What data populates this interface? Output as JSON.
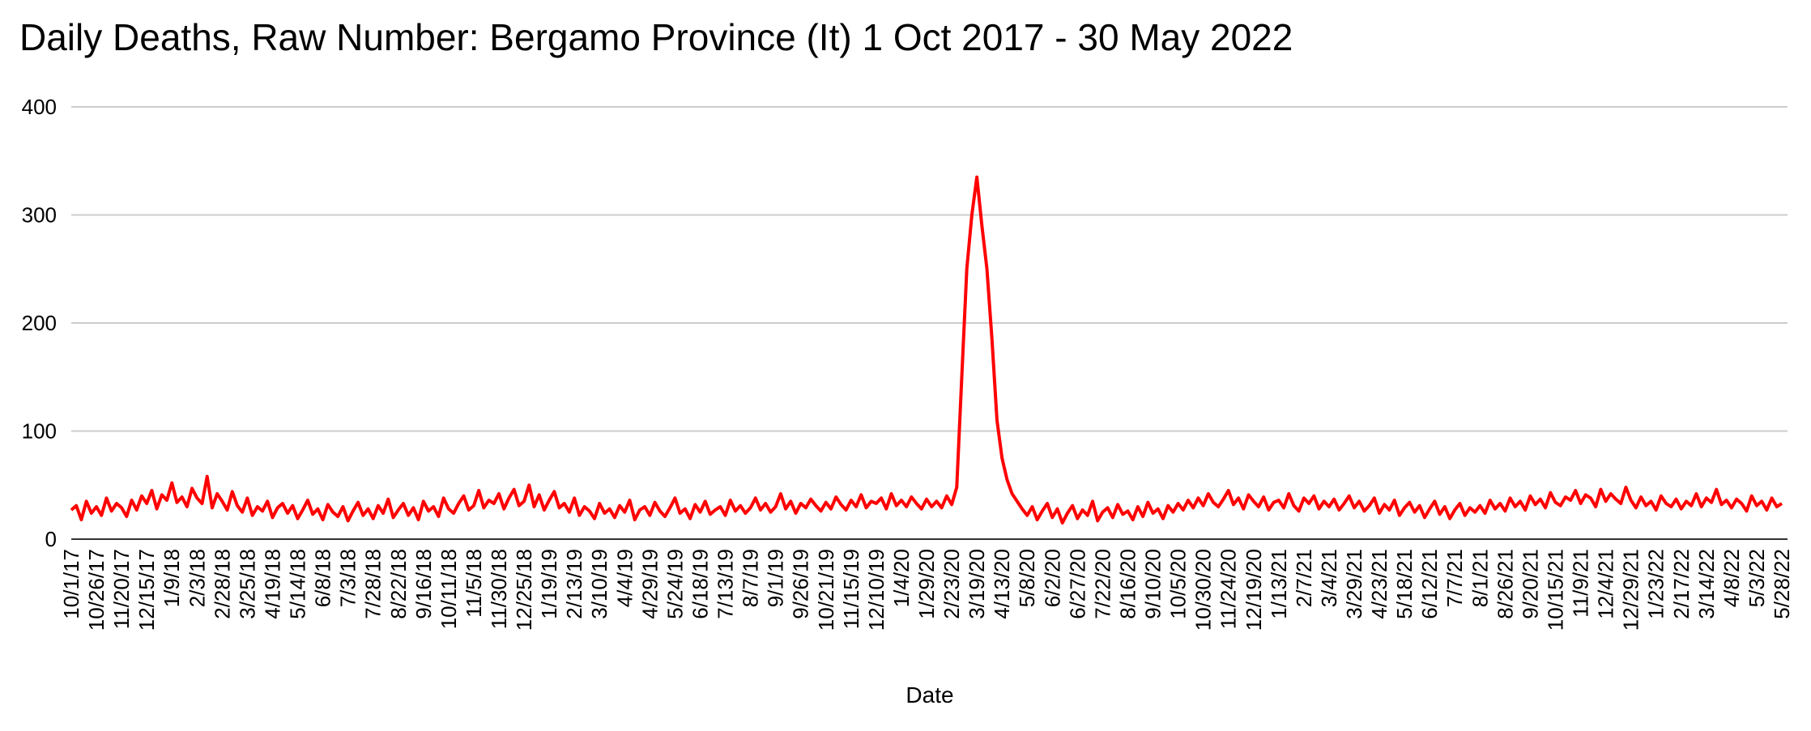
{
  "chart_data": {
    "type": "line",
    "title": "Daily Deaths, Raw Number: Bergamo Province (It) 1 Oct 2017 - 30 May 2022",
    "x_label": "Date",
    "color": "#ff0000",
    "grid": true,
    "ylim": [
      0,
      400
    ],
    "yticks": [
      0,
      100,
      200,
      300,
      400
    ],
    "categories": [
      "10/1/17",
      null,
      null,
      null,
      null,
      "10/26/17",
      null,
      null,
      null,
      null,
      "11/20/17",
      null,
      null,
      null,
      null,
      "12/15/17",
      null,
      null,
      null,
      null,
      "1/9/18",
      null,
      null,
      null,
      null,
      "2/3/18",
      null,
      null,
      null,
      null,
      "2/28/18",
      null,
      null,
      null,
      null,
      "3/25/18",
      null,
      null,
      null,
      null,
      "4/19/18",
      null,
      null,
      null,
      null,
      "5/14/18",
      null,
      null,
      null,
      null,
      "6/8/18",
      null,
      null,
      null,
      null,
      "7/3/18",
      null,
      null,
      null,
      null,
      "7/28/18",
      null,
      null,
      null,
      null,
      "8/22/18",
      null,
      null,
      null,
      null,
      "9/16/18",
      null,
      null,
      null,
      null,
      "10/11/18",
      null,
      null,
      null,
      null,
      "11/5/18",
      null,
      null,
      null,
      null,
      "11/30/18",
      null,
      null,
      null,
      null,
      "12/25/18",
      null,
      null,
      null,
      null,
      "1/19/19",
      null,
      null,
      null,
      null,
      "2/13/19",
      null,
      null,
      null,
      null,
      "3/10/19",
      null,
      null,
      null,
      null,
      "4/4/19",
      null,
      null,
      null,
      null,
      "4/29/19",
      null,
      null,
      null,
      null,
      "5/24/19",
      null,
      null,
      null,
      null,
      "6/18/19",
      null,
      null,
      null,
      null,
      "7/13/19",
      null,
      null,
      null,
      null,
      "8/7/19",
      null,
      null,
      null,
      null,
      "9/1/19",
      null,
      null,
      null,
      null,
      "9/26/19",
      null,
      null,
      null,
      null,
      "10/21/19",
      null,
      null,
      null,
      null,
      "11/15/19",
      null,
      null,
      null,
      null,
      "12/10/19",
      null,
      null,
      null,
      null,
      "1/4/20",
      null,
      null,
      null,
      null,
      "1/29/20",
      null,
      null,
      null,
      null,
      "2/23/20",
      null,
      null,
      null,
      null,
      "3/19/20",
      null,
      null,
      null,
      null,
      "4/13/20",
      null,
      null,
      null,
      null,
      "5/8/20",
      null,
      null,
      null,
      null,
      "6/2/20",
      null,
      null,
      null,
      null,
      "6/27/20",
      null,
      null,
      null,
      null,
      "7/22/20",
      null,
      null,
      null,
      null,
      "8/16/20",
      null,
      null,
      null,
      null,
      "9/10/20",
      null,
      null,
      null,
      null,
      "10/5/20",
      null,
      null,
      null,
      null,
      "10/30/20",
      null,
      null,
      null,
      null,
      "11/24/20",
      null,
      null,
      null,
      null,
      "12/19/20",
      null,
      null,
      null,
      null,
      "1/13/21",
      null,
      null,
      null,
      null,
      "2/7/21",
      null,
      null,
      null,
      null,
      "3/4/21",
      null,
      null,
      null,
      null,
      "3/29/21",
      null,
      null,
      null,
      null,
      "4/23/21",
      null,
      null,
      null,
      null,
      "5/18/21",
      null,
      null,
      null,
      null,
      "6/12/21",
      null,
      null,
      null,
      null,
      "7/7/21",
      null,
      null,
      null,
      null,
      "8/1/21",
      null,
      null,
      null,
      null,
      "8/26/21",
      null,
      null,
      null,
      null,
      "9/20/21",
      null,
      null,
      null,
      null,
      "10/15/21",
      null,
      null,
      null,
      null,
      "11/9/21",
      null,
      null,
      null,
      null,
      "12/4/21",
      null,
      null,
      null,
      null,
      "12/29/21",
      null,
      null,
      null,
      null,
      "1/23/22",
      null,
      null,
      null,
      null,
      "2/17/22",
      null,
      null,
      null,
      null,
      "3/14/22",
      null,
      null,
      null,
      null,
      "4/8/22",
      null,
      null,
      null,
      null,
      "5/3/22",
      null,
      null,
      null,
      null,
      "5/28/22"
    ],
    "values": [
      27,
      31,
      18,
      35,
      24,
      30,
      22,
      38,
      26,
      33,
      29,
      21,
      36,
      27,
      40,
      33,
      45,
      28,
      41,
      36,
      52,
      34,
      39,
      30,
      47,
      38,
      33,
      58,
      29,
      42,
      35,
      27,
      44,
      31,
      25,
      38,
      22,
      30,
      26,
      35,
      20,
      29,
      33,
      24,
      31,
      19,
      27,
      36,
      23,
      28,
      18,
      32,
      25,
      21,
      30,
      17,
      26,
      34,
      22,
      28,
      19,
      31,
      24,
      37,
      20,
      27,
      33,
      22,
      29,
      18,
      35,
      26,
      30,
      21,
      38,
      28,
      24,
      33,
      40,
      27,
      31,
      45,
      29,
      36,
      33,
      42,
      28,
      38,
      46,
      31,
      35,
      50,
      30,
      41,
      27,
      36,
      44,
      29,
      33,
      25,
      38,
      22,
      30,
      26,
      19,
      33,
      24,
      28,
      20,
      31,
      25,
      36,
      18,
      27,
      30,
      22,
      34,
      26,
      21,
      29,
      38,
      24,
      28,
      19,
      32,
      25,
      35,
      23,
      27,
      30,
      22,
      36,
      26,
      31,
      24,
      29,
      38,
      27,
      33,
      25,
      30,
      42,
      28,
      35,
      24,
      33,
      29,
      37,
      31,
      26,
      34,
      28,
      39,
      32,
      27,
      36,
      30,
      41,
      29,
      35,
      33,
      38,
      28,
      42,
      31,
      36,
      30,
      39,
      33,
      28,
      37,
      30,
      35,
      29,
      40,
      32,
      48,
      150,
      250,
      300,
      335,
      290,
      250,
      185,
      110,
      75,
      55,
      42,
      35,
      28,
      22,
      30,
      18,
      26,
      33,
      20,
      28,
      15,
      24,
      31,
      19,
      27,
      22,
      35,
      17,
      25,
      29,
      20,
      32,
      23,
      26,
      18,
      30,
      21,
      34,
      24,
      28,
      19,
      31,
      25,
      33,
      27,
      36,
      29,
      38,
      31,
      42,
      34,
      30,
      37,
      45,
      32,
      38,
      28,
      41,
      35,
      30,
      39,
      27,
      34,
      36,
      29,
      42,
      31,
      26,
      38,
      33,
      40,
      28,
      35,
      30,
      37,
      27,
      33,
      40,
      29,
      35,
      26,
      31,
      38,
      24,
      32,
      27,
      36,
      22,
      29,
      34,
      25,
      31,
      20,
      28,
      35,
      23,
      30,
      19,
      27,
      33,
      22,
      29,
      25,
      31,
      24,
      36,
      28,
      33,
      26,
      38,
      30,
      35,
      27,
      40,
      32,
      37,
      29,
      43,
      34,
      31,
      39,
      36,
      45,
      33,
      41,
      38,
      30,
      46,
      35,
      42,
      37,
      33,
      48,
      36,
      29,
      39,
      31,
      35,
      27,
      40,
      33,
      30,
      37,
      28,
      35,
      31,
      42,
      30,
      38,
      34,
      46,
      32,
      36,
      29,
      37,
      33,
      26,
      40,
      31,
      35,
      27,
      38,
      30,
      33
    ]
  }
}
